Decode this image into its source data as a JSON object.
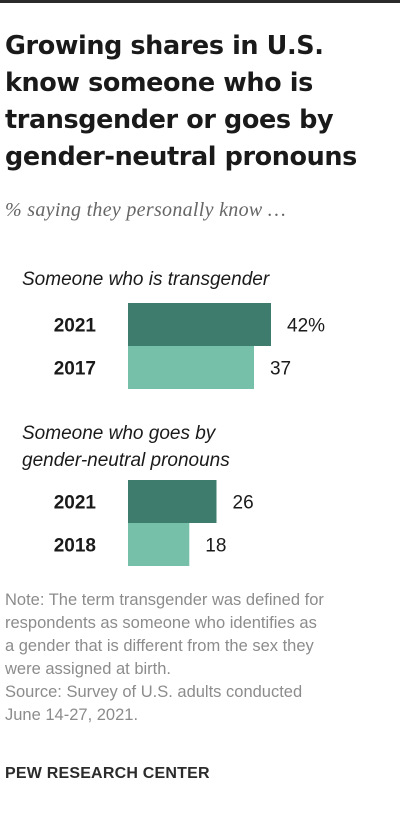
{
  "title": "Growing shares in U.S. know someone who is transgender or goes by gender-neutral pronouns",
  "subtitle": "% saying they personally know …",
  "colors": {
    "dark": "#3e7d6d",
    "light": "#76bfa9"
  },
  "chart_data": {
    "type": "bar",
    "orientation": "horizontal",
    "xlim": [
      0,
      42
    ],
    "groups": [
      {
        "label_lines": [
          "Someone who is transgender"
        ],
        "bars": [
          {
            "year": "2021",
            "value": 42,
            "label": "42%",
            "shade": "dark"
          },
          {
            "year": "2017",
            "value": 37,
            "label": "37",
            "shade": "light"
          }
        ]
      },
      {
        "label_lines": [
          "Someone who goes by",
          "gender-neutral pronouns"
        ],
        "bars": [
          {
            "year": "2021",
            "value": 26,
            "label": "26",
            "shade": "dark"
          },
          {
            "year": "2018",
            "value": 18,
            "label": "18",
            "shade": "light"
          }
        ]
      }
    ]
  },
  "note_lines": [
    "Note: The term transgender was defined for",
    "respondents as someone who identifies as",
    "a gender that is different from the sex they",
    "were assigned at birth."
  ],
  "source_lines": [
    "Source: Survey of U.S. adults conducted",
    "June 14-27, 2021."
  ],
  "footer": "PEW RESEARCH CENTER"
}
